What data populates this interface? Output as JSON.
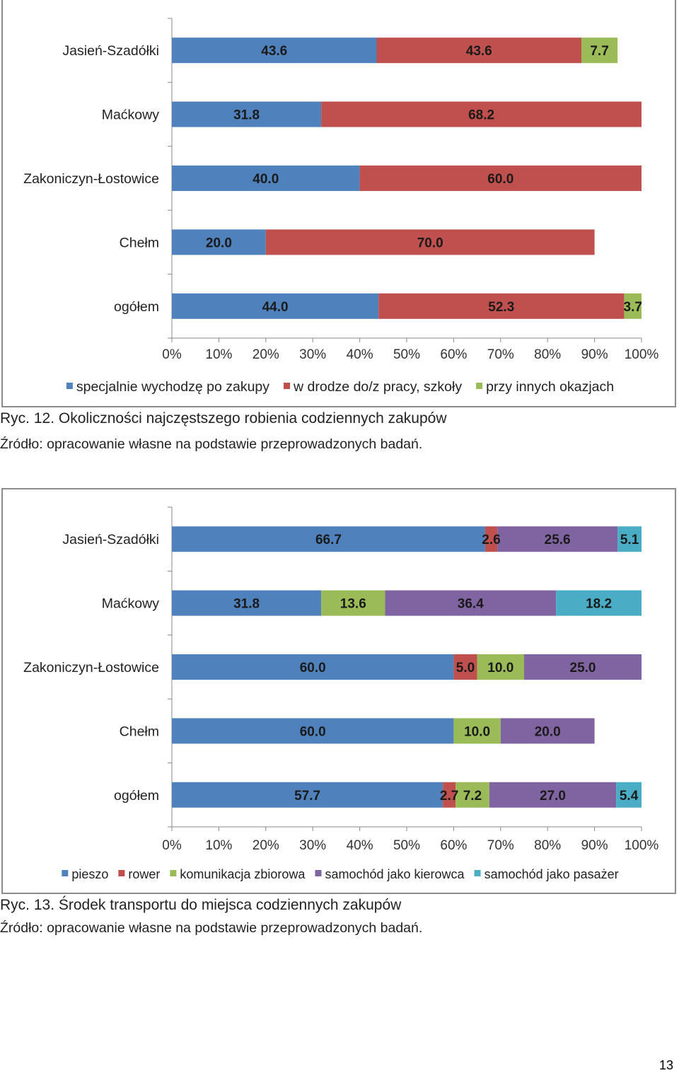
{
  "chart_data": [
    {
      "type": "bar",
      "orientation": "horizontal",
      "stacked": "100%",
      "categories": [
        "Jasień-Szadółki",
        "Maćkowy",
        "Zakoniczyn-Łostowice",
        "Chełm",
        "ogółem"
      ],
      "series": [
        {
          "name": "specjalnie wychodzę po zakupy",
          "color": "#4f81bd",
          "values": [
            43.6,
            31.8,
            40.0,
            20.0,
            44.0
          ],
          "labels": [
            "43.6",
            "31.8",
            "40.0",
            "20.0",
            "44.0"
          ]
        },
        {
          "name": "w drodze do/z pracy, szkoły",
          "color": "#c0504d",
          "values": [
            43.6,
            68.2,
            60.0,
            70.0,
            52.3
          ],
          "labels": [
            "43.6",
            "68.2",
            "60.0",
            "70.0",
            "52.3"
          ]
        },
        {
          "name": "przy innych okazjach",
          "color": "#9bbb59",
          "values": [
            7.7,
            0,
            0,
            0,
            3.7
          ],
          "labels": [
            "7.7",
            "",
            "",
            "",
            "3.7"
          ]
        }
      ],
      "x_ticks": [
        "0%",
        "10%",
        "20%",
        "30%",
        "40%",
        "50%",
        "60%",
        "70%",
        "80%",
        "90%",
        "100%"
      ],
      "xlim": [
        0,
        100
      ],
      "legend_position": "bottom",
      "grid": false
    },
    {
      "type": "bar",
      "orientation": "horizontal",
      "stacked": "100%",
      "categories": [
        "Jasień-Szadółki",
        "Maćkowy",
        "Zakoniczyn-Łostowice",
        "Chełm",
        "ogółem"
      ],
      "series": [
        {
          "name": "pieszo",
          "color": "#4f81bd",
          "values": [
            66.7,
            31.8,
            60.0,
            60.0,
            57.7
          ],
          "labels": [
            "66.7",
            "31.8",
            "60.0",
            "60.0",
            "57.7"
          ]
        },
        {
          "name": "rower",
          "color": "#c0504d",
          "values": [
            2.6,
            0,
            5.0,
            0,
            2.7
          ],
          "labels": [
            "2.6",
            "",
            "5.0",
            "",
            "2.7"
          ]
        },
        {
          "name": "komunikacja zbiorowa",
          "color": "#9bbb59",
          "values": [
            0,
            13.6,
            10.0,
            10.0,
            7.2
          ],
          "labels": [
            "",
            "13.6",
            "10.0",
            "10.0",
            "7.2"
          ]
        },
        {
          "name": "samochód jako kierowca",
          "color": "#8064a2",
          "values": [
            25.6,
            36.4,
            25.0,
            20.0,
            27.0
          ],
          "labels": [
            "25.6",
            "36.4",
            "25.0",
            "20.0",
            "27.0"
          ]
        },
        {
          "name": "samochód jako pasażer",
          "color": "#4bacc6",
          "values": [
            5.1,
            18.2,
            0,
            0,
            5.4
          ],
          "labels": [
            "5.1",
            "18.2",
            "",
            "",
            "5.4"
          ]
        }
      ],
      "x_ticks": [
        "0%",
        "10%",
        "20%",
        "30%",
        "40%",
        "50%",
        "60%",
        "70%",
        "80%",
        "90%",
        "100%"
      ],
      "xlim": [
        0,
        100
      ],
      "legend_position": "bottom",
      "grid": false
    }
  ],
  "captions": [
    {
      "title": "Ryc. 12. Okoliczności najczęstszego robienia codziennych zakupów",
      "source": "Źródło: opracowanie własne na podstawie przeprowadzonych badań."
    },
    {
      "title": "Ryc. 13. Środek transportu do miejsca codziennych zakupów",
      "source": "Źródło: opracowanie własne na podstawie przeprowadzonych badań."
    }
  ],
  "page_number": "13"
}
